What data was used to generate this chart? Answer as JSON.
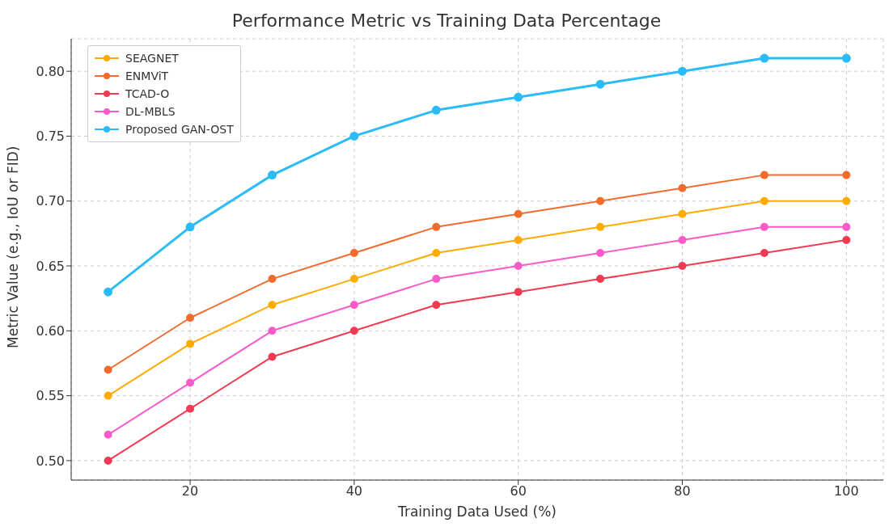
{
  "chart_data": {
    "type": "line",
    "title": "Performance Metric vs Training Data Percentage",
    "xlabel": "Training Data Used (%)",
    "ylabel": "Metric Value (e.g., IoU or FID)",
    "x": [
      10,
      20,
      30,
      40,
      50,
      60,
      70,
      80,
      90,
      100
    ],
    "series": [
      {
        "name": "SEAGNET",
        "color": "#ffab00",
        "values": [
          0.55,
          0.59,
          0.62,
          0.64,
          0.66,
          0.67,
          0.68,
          0.69,
          0.7,
          0.7
        ]
      },
      {
        "name": "ENMViT",
        "color": "#f36b2c",
        "values": [
          0.57,
          0.61,
          0.64,
          0.66,
          0.68,
          0.69,
          0.7,
          0.71,
          0.72,
          0.72
        ]
      },
      {
        "name": "TCAD-O",
        "color": "#f23a52",
        "values": [
          0.5,
          0.54,
          0.58,
          0.6,
          0.62,
          0.63,
          0.64,
          0.65,
          0.66,
          0.67
        ]
      },
      {
        "name": "DL-MBLS",
        "color": "#fa5bc9",
        "values": [
          0.52,
          0.56,
          0.6,
          0.62,
          0.64,
          0.65,
          0.66,
          0.67,
          0.68,
          0.68
        ]
      },
      {
        "name": "Proposed GAN-OST",
        "color": "#2bbcf7",
        "values": [
          0.63,
          0.68,
          0.72,
          0.75,
          0.77,
          0.78,
          0.79,
          0.8,
          0.81,
          0.81
        ]
      }
    ],
    "xlim": [
      5.5,
      104.5
    ],
    "xticks": [
      20,
      40,
      60,
      80,
      100
    ],
    "ylim": [
      0.485,
      0.825
    ],
    "yticks": [
      {
        "value": 0.5,
        "label": "0.50"
      },
      {
        "value": 0.55,
        "label": "0.55"
      },
      {
        "value": 0.6,
        "label": "0.60"
      },
      {
        "value": 0.65,
        "label": "0.65"
      },
      {
        "value": 0.7,
        "label": "0.70"
      },
      {
        "value": 0.75,
        "label": "0.75"
      },
      {
        "value": 0.8,
        "label": "0.80"
      }
    ],
    "grid": true,
    "legend": "top left",
    "marker": "circle",
    "line_style": "solid"
  }
}
